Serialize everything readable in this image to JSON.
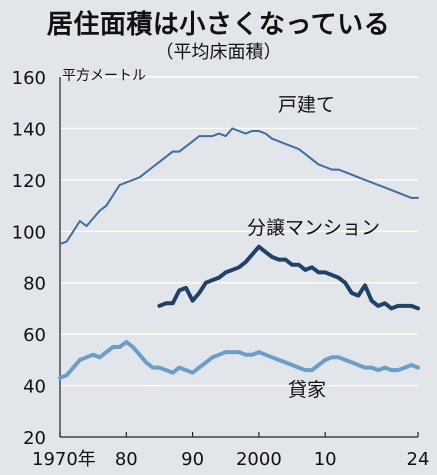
{
  "chart_data": {
    "type": "line",
    "title": "居住面積は小さくなっている",
    "subtitle": "（平均床面積）",
    "ylabel": "平方メートル",
    "xlabel": "",
    "xlim": [
      1970,
      2024
    ],
    "ylim": [
      20,
      160
    ],
    "yticks": [
      "20",
      "40",
      "60",
      "80",
      "100",
      "120",
      "140",
      "160"
    ],
    "xticks": [
      {
        "x": 1970,
        "label": "1970年"
      },
      {
        "x": 1980,
        "label": "80"
      },
      {
        "x": 1990,
        "label": "90"
      },
      {
        "x": 2000,
        "label": "2000"
      },
      {
        "x": 2010,
        "label": "10"
      },
      {
        "x": 2024,
        "label": "24"
      }
    ],
    "grid": true,
    "legend": "inline labels",
    "series": [
      {
        "name": "戸建て",
        "color": "#3d6fa0",
        "x": [
          1970,
          1971,
          1972,
          1973,
          1974,
          1975,
          1976,
          1977,
          1978,
          1979,
          1980,
          1981,
          1982,
          1983,
          1984,
          1985,
          1986,
          1987,
          1988,
          1989,
          1990,
          1991,
          1992,
          1993,
          1994,
          1995,
          1996,
          1997,
          1998,
          1999,
          2000,
          2001,
          2002,
          2003,
          2004,
          2005,
          2006,
          2007,
          2008,
          2009,
          2010,
          2011,
          2012,
          2013,
          2014,
          2015,
          2016,
          2017,
          2018,
          2019,
          2020,
          2021,
          2022,
          2023,
          2024
        ],
        "values": [
          95,
          96,
          100,
          104,
          102,
          105,
          108,
          110,
          114,
          118,
          119,
          120,
          121,
          123,
          125,
          127,
          129,
          131,
          131,
          133,
          135,
          137,
          137,
          137,
          138,
          137,
          140,
          139,
          138,
          139,
          139,
          138,
          136,
          135,
          134,
          133,
          132,
          130,
          128,
          126,
          125,
          124,
          124,
          123,
          122,
          121,
          120,
          119,
          118,
          117,
          116,
          115,
          114,
          113,
          113
        ]
      },
      {
        "name": "分譲マンション",
        "color": "#1e4268",
        "x": [
          1985,
          1986,
          1987,
          1988,
          1989,
          1990,
          1991,
          1992,
          1993,
          1994,
          1995,
          1996,
          1997,
          1998,
          1999,
          2000,
          2001,
          2002,
          2003,
          2004,
          2005,
          2006,
          2007,
          2008,
          2009,
          2010,
          2011,
          2012,
          2013,
          2014,
          2015,
          2016,
          2017,
          2018,
          2019,
          2020,
          2021,
          2022,
          2023,
          2024
        ],
        "values": [
          71,
          72,
          72,
          77,
          78,
          73,
          76,
          80,
          81,
          82,
          84,
          85,
          86,
          88,
          91,
          94,
          92,
          90,
          89,
          89,
          87,
          87,
          85,
          86,
          84,
          84,
          83,
          82,
          80,
          76,
          75,
          79,
          73,
          71,
          72,
          70,
          71,
          71,
          71,
          70
        ]
      },
      {
        "name": "貸家",
        "color": "#6a9fc8",
        "x": [
          1970,
          1971,
          1972,
          1973,
          1974,
          1975,
          1976,
          1977,
          1978,
          1979,
          1980,
          1981,
          1982,
          1983,
          1984,
          1985,
          1986,
          1987,
          1988,
          1989,
          1990,
          1991,
          1992,
          1993,
          1994,
          1995,
          1996,
          1997,
          1998,
          1999,
          2000,
          2001,
          2002,
          2003,
          2004,
          2005,
          2006,
          2007,
          2008,
          2009,
          2010,
          2011,
          2012,
          2013,
          2014,
          2015,
          2016,
          2017,
          2018,
          2019,
          2020,
          2021,
          2022,
          2023,
          2024
        ],
        "values": [
          43,
          44,
          47,
          50,
          51,
          52,
          51,
          53,
          55,
          55,
          57,
          55,
          52,
          49,
          47,
          47,
          46,
          45,
          47,
          46,
          45,
          47,
          49,
          51,
          52,
          53,
          53,
          53,
          52,
          52,
          53,
          52,
          51,
          50,
          49,
          48,
          47,
          46,
          46,
          48,
          50,
          51,
          51,
          50,
          49,
          48,
          47,
          47,
          46,
          47,
          46,
          46,
          47,
          48,
          47
        ]
      }
    ]
  }
}
